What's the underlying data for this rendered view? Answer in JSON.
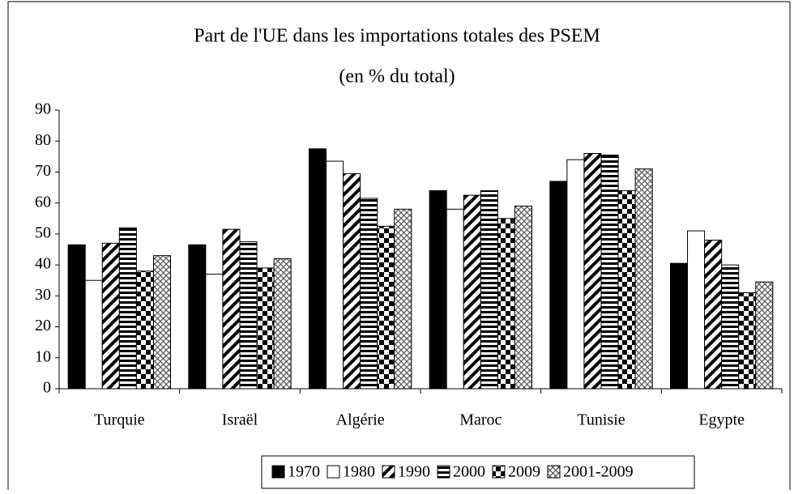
{
  "chart_data": {
    "type": "bar",
    "title": "Part de l'UE dans les importations totales des PSEM",
    "subtitle": "(en % du total)",
    "categories": [
      "Turquie",
      "Israël",
      "Algérie",
      "Maroc",
      "Tunisie",
      "Egypte"
    ],
    "series": [
      {
        "name": "1970",
        "color": "#000000",
        "pattern": "solid",
        "values": [
          46.5,
          46.5,
          77.5,
          64,
          67,
          40.5
        ]
      },
      {
        "name": "1980",
        "color": "#000000",
        "pattern": "none",
        "values": [
          35,
          37,
          73.5,
          58,
          74,
          51
        ]
      },
      {
        "name": "1990",
        "color": "#000000",
        "pattern": "diagonal",
        "values": [
          47,
          51.5,
          69.5,
          62.5,
          76,
          48
        ]
      },
      {
        "name": "2000",
        "color": "#000000",
        "pattern": "horizontal",
        "values": [
          52,
          47.5,
          61.5,
          64,
          75.5,
          40
        ]
      },
      {
        "name": "2009",
        "color": "#000000",
        "pattern": "checker",
        "values": [
          38,
          39,
          52.5,
          55,
          64,
          31
        ]
      },
      {
        "name": "2001-2009",
        "color": "#000000",
        "pattern": "crosshatch",
        "values": [
          43,
          42,
          58,
          59,
          71,
          34.5
        ]
      }
    ],
    "ylim": [
      0,
      90
    ],
    "yticks": [
      0,
      10,
      20,
      30,
      40,
      50,
      60,
      70,
      80,
      90
    ],
    "grid": false,
    "legend": "bottom"
  }
}
